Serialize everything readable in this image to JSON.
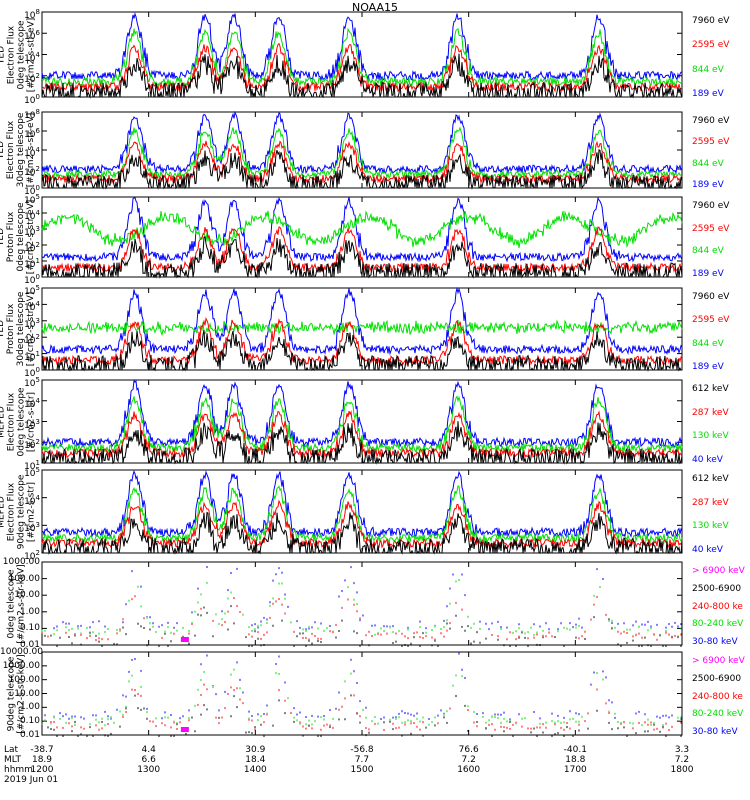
{
  "title": "NOAA15",
  "date_label": "2019 Jun 01",
  "colors": {
    "black": "#000000",
    "red": "#ff0000",
    "green": "#00e000",
    "blue": "#0000ff",
    "magenta": "#ff00ff"
  },
  "x_axis": {
    "row_labels": [
      "Lat",
      "MLT",
      "hhmm"
    ],
    "ticks": [
      {
        "lat": "-38.7",
        "mlt": "18.9",
        "hhmm": "1200"
      },
      {
        "lat": "4.4",
        "mlt": "6.6",
        "hhmm": "1300"
      },
      {
        "lat": "30.9",
        "mlt": "18.4",
        "hhmm": "1400"
      },
      {
        "lat": "-56.8",
        "mlt": "7.7",
        "hhmm": "1500"
      },
      {
        "lat": "76.6",
        "mlt": "7.2",
        "hhmm": "1600"
      },
      {
        "lat": "-40.1",
        "mlt": "18.8",
        "hhmm": "1700"
      },
      {
        "lat": "3.3",
        "mlt": "7.2",
        "hhmm": "1800"
      }
    ]
  },
  "panels": [
    {
      "ylabel": [
        "TED",
        "Electron Flux",
        "0deg telescope",
        "[#/cm2-s-str-eV]"
      ],
      "yticks": [
        "10^0",
        "10^2",
        "10^4",
        "10^6",
        "10^8"
      ],
      "legend": [
        {
          "t": "7960 eV",
          "c": "black"
        },
        {
          "t": "2595 eV",
          "c": "red"
        },
        {
          "t": "844 eV",
          "c": "green"
        },
        {
          "t": "189 eV",
          "c": "blue"
        }
      ]
    },
    {
      "ylabel": [
        "TED",
        "Electron Flux",
        "30deg telescope",
        "[#/cm2-s-str-eV]"
      ],
      "yticks": [
        "10^0",
        "10^2",
        "10^4",
        "10^6",
        "10^8"
      ],
      "legend": [
        {
          "t": "7960 eV",
          "c": "black"
        },
        {
          "t": "2595 eV",
          "c": "red"
        },
        {
          "t": "844 eV",
          "c": "green"
        },
        {
          "t": "189 eV",
          "c": "blue"
        }
      ]
    },
    {
      "ylabel": [
        "TED",
        "Proton Flux",
        "0deg telescope",
        "[#/cm2-s-str-eV]"
      ],
      "yticks": [
        "10^0",
        "10^1",
        "10^2",
        "10^3",
        "10^4",
        "10^5"
      ],
      "legend": [
        {
          "t": "7960 eV",
          "c": "black"
        },
        {
          "t": "2595 eV",
          "c": "red"
        },
        {
          "t": "844 eV",
          "c": "green"
        },
        {
          "t": "189 eV",
          "c": "blue"
        }
      ]
    },
    {
      "ylabel": [
        "TED",
        "Proton Flux",
        "30deg telescope",
        "[#/cm2-s-str-eV]"
      ],
      "yticks": [
        "10^0",
        "10^1",
        "10^2",
        "10^3",
        "10^4",
        "10^5"
      ],
      "legend": [
        {
          "t": "7960 eV",
          "c": "black"
        },
        {
          "t": "2595 eV",
          "c": "red"
        },
        {
          "t": "844 eV",
          "c": "green"
        },
        {
          "t": "189 eV",
          "c": "blue"
        }
      ]
    },
    {
      "ylabel": [
        "MEPED",
        "Electron Flux",
        "0deg telescope",
        "[#/cm2-s-str]"
      ],
      "yticks": [
        "10^1",
        "10^2",
        "10^3",
        "10^4",
        "10^5"
      ],
      "legend": [
        {
          "t": "612 keV",
          "c": "black"
        },
        {
          "t": "287 keV",
          "c": "red"
        },
        {
          "t": "130 keV",
          "c": "green"
        },
        {
          "t": "40 keV",
          "c": "blue"
        }
      ]
    },
    {
      "ylabel": [
        "MEPED",
        "Electron Flux",
        "90deg telescope",
        "[#/cm2-s-str]"
      ],
      "yticks": [
        "10^2",
        "10^3",
        "10^4",
        "10^5"
      ],
      "legend": [
        {
          "t": "612 keV",
          "c": "black"
        },
        {
          "t": "287 keV",
          "c": "red"
        },
        {
          "t": "130 keV",
          "c": "green"
        },
        {
          "t": "40 keV",
          "c": "blue"
        }
      ]
    },
    {
      "ylabel": [
        "0deg telescope",
        "[#/cm2-s-str-keV]"
      ],
      "yticks": [
        "0.01",
        "0.10",
        "1.00",
        "10.00",
        "100.00",
        "1000.00"
      ],
      "legend": [
        {
          "t": "> 6900 keV",
          "c": "magenta"
        },
        {
          "t": "2500-6900",
          "c": "black"
        },
        {
          "t": "240-800 ke",
          "c": "red"
        },
        {
          "t": "80-240 keV",
          "c": "green"
        },
        {
          "t": "30-80 keV",
          "c": "blue"
        }
      ]
    },
    {
      "ylabel": [
        "90deg telescope",
        "[#/cm2-s-str-keV]"
      ],
      "yticks": [
        "0.01",
        "0.10",
        "1.00",
        "10.00",
        "100.00",
        "1000.00",
        "10000.00"
      ],
      "legend": [
        {
          "t": "> 6900 keV",
          "c": "magenta"
        },
        {
          "t": "2500-6900",
          "c": "black"
        },
        {
          "t": "240-800 ke",
          "c": "red"
        },
        {
          "t": "80-240 keV",
          "c": "green"
        },
        {
          "t": "30-80 keV",
          "c": "blue"
        }
      ]
    }
  ],
  "chart_data": {
    "type": "line",
    "title": "NOAA15",
    "x_range": [
      "1200",
      "1800"
    ],
    "peak_times_hhmm": [
      "1221",
      "1312",
      "1338",
      "1410",
      "1450",
      "1555",
      "1632"
    ],
    "log_scale": true,
    "grid": false
  }
}
